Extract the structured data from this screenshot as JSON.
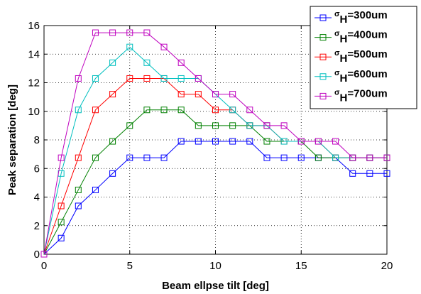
{
  "chart_data": {
    "type": "line",
    "xlabel": "Beam ellpse tilt [deg]",
    "ylabel": "Peak separation [deg]",
    "xlim": [
      0,
      20
    ],
    "ylim": [
      0,
      16
    ],
    "xticks": [
      0,
      5,
      10,
      15,
      20
    ],
    "yticks": [
      0,
      2,
      4,
      6,
      8,
      10,
      12,
      14,
      16
    ],
    "grid": true,
    "legend_position": "top-right",
    "x": [
      0,
      1,
      2,
      3,
      4,
      5,
      6,
      7,
      8,
      9,
      10,
      11,
      12,
      13,
      14,
      15,
      16,
      17,
      18,
      19,
      20
    ],
    "series": [
      {
        "name": "σH=300um",
        "legend_sym": "σ",
        "legend_sub": "H",
        "legend_rest": "=300um",
        "color": "#0000ff",
        "values": [
          0,
          1.13,
          3.38,
          4.5,
          5.65,
          6.75,
          6.75,
          6.75,
          7.9,
          7.9,
          7.9,
          7.9,
          7.9,
          6.75,
          6.75,
          6.75,
          6.75,
          6.75,
          5.65,
          5.65,
          5.65
        ]
      },
      {
        "name": "σH=400um",
        "legend_sym": "σ",
        "legend_sub": "H",
        "legend_rest": "=400um",
        "color": "#008000",
        "values": [
          0,
          2.25,
          4.5,
          6.75,
          7.9,
          9.0,
          10.1,
          10.1,
          10.1,
          9.0,
          9.0,
          9.0,
          9.0,
          7.9,
          7.9,
          7.9,
          6.75,
          6.75,
          6.75,
          6.75,
          6.75
        ]
      },
      {
        "name": "σH=500um",
        "legend_sym": "σ",
        "legend_sub": "H",
        "legend_rest": "=500um",
        "color": "#ff0000",
        "values": [
          0,
          3.38,
          6.75,
          10.1,
          11.2,
          12.3,
          12.3,
          12.3,
          11.2,
          11.2,
          10.1,
          10.1,
          9.0,
          9.0,
          7.9,
          7.9,
          7.9,
          6.75,
          6.75,
          6.75,
          6.75
        ]
      },
      {
        "name": "σH=600um",
        "legend_sym": "σ",
        "legend_sub": "H",
        "legend_rest": "=600um",
        "color": "#00bfbf",
        "values": [
          0,
          5.65,
          10.1,
          12.3,
          13.4,
          14.5,
          13.4,
          12.3,
          12.3,
          12.3,
          11.2,
          10.1,
          9.0,
          9.0,
          7.9,
          7.9,
          7.9,
          6.75,
          6.75,
          6.75,
          6.75
        ]
      },
      {
        "name": "σH=700um",
        "legend_sym": "σ",
        "legend_sub": "H",
        "legend_rest": "=700um",
        "color": "#bf00bf",
        "values": [
          0,
          6.75,
          12.3,
          15.5,
          15.5,
          15.5,
          15.5,
          14.5,
          13.4,
          12.3,
          11.2,
          11.2,
          10.1,
          9.0,
          9.0,
          7.9,
          7.9,
          7.9,
          6.75,
          6.75,
          6.75
        ]
      }
    ]
  }
}
